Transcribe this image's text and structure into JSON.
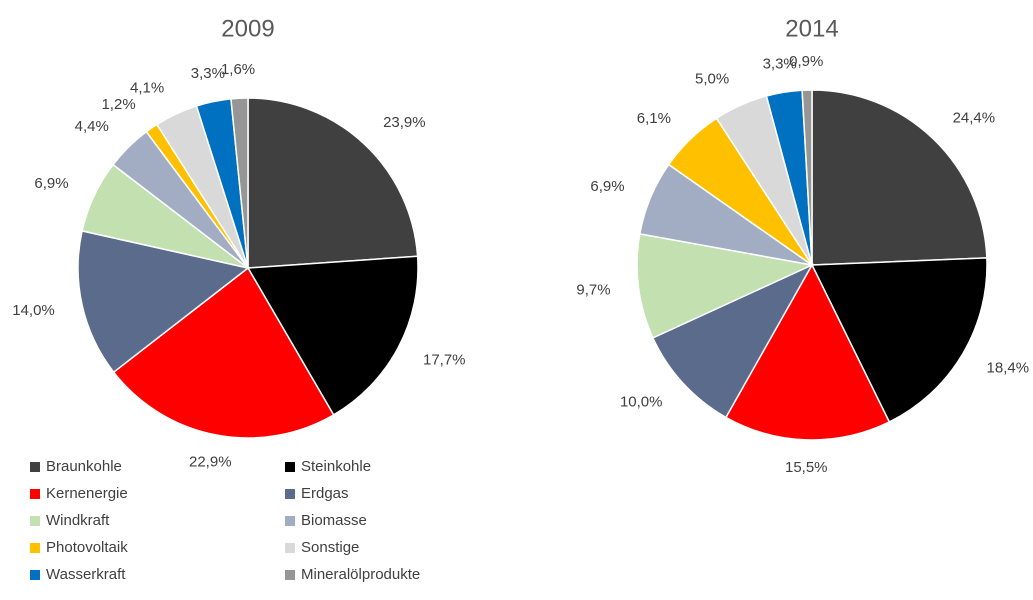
{
  "chart_data": [
    {
      "type": "pie",
      "title": "2009",
      "values": [
        23.9,
        17.7,
        22.9,
        14.0,
        6.9,
        4.4,
        1.2,
        4.1,
        3.3,
        1.6
      ],
      "value_labels": [
        "23,9%",
        "17,7%",
        "22,9%",
        "14,0%",
        "6,9%",
        "4,4%",
        "1,2%",
        "4,1%",
        "3,3%",
        "1,6%"
      ]
    },
    {
      "type": "pie",
      "title": "2014",
      "values": [
        24.4,
        18.4,
        15.5,
        10.0,
        9.7,
        6.9,
        6.1,
        5.0,
        3.3,
        0.9
      ],
      "value_labels": [
        "24,4%",
        "18,4%",
        "15,5%",
        "10,0%",
        "9,7%",
        "6,9%",
        "6,1%",
        "5,0%",
        "3,3%",
        "0,9%"
      ]
    }
  ],
  "legend": {
    "entries": [
      "Braunkohle",
      "Steinkohle",
      "Kernenergie",
      "Erdgas",
      "Windkraft",
      "Biomasse",
      "Photovoltaik",
      "Sonstige",
      "Wasserkraft",
      "Mineralölprodukte"
    ],
    "colors": [
      "#404040",
      "#000000",
      "#ff0000",
      "#5b6b8c",
      "#c3e0b0",
      "#a2adc4",
      "#ffc000",
      "#d9d9d9",
      "#0070c0",
      "#969696"
    ]
  }
}
